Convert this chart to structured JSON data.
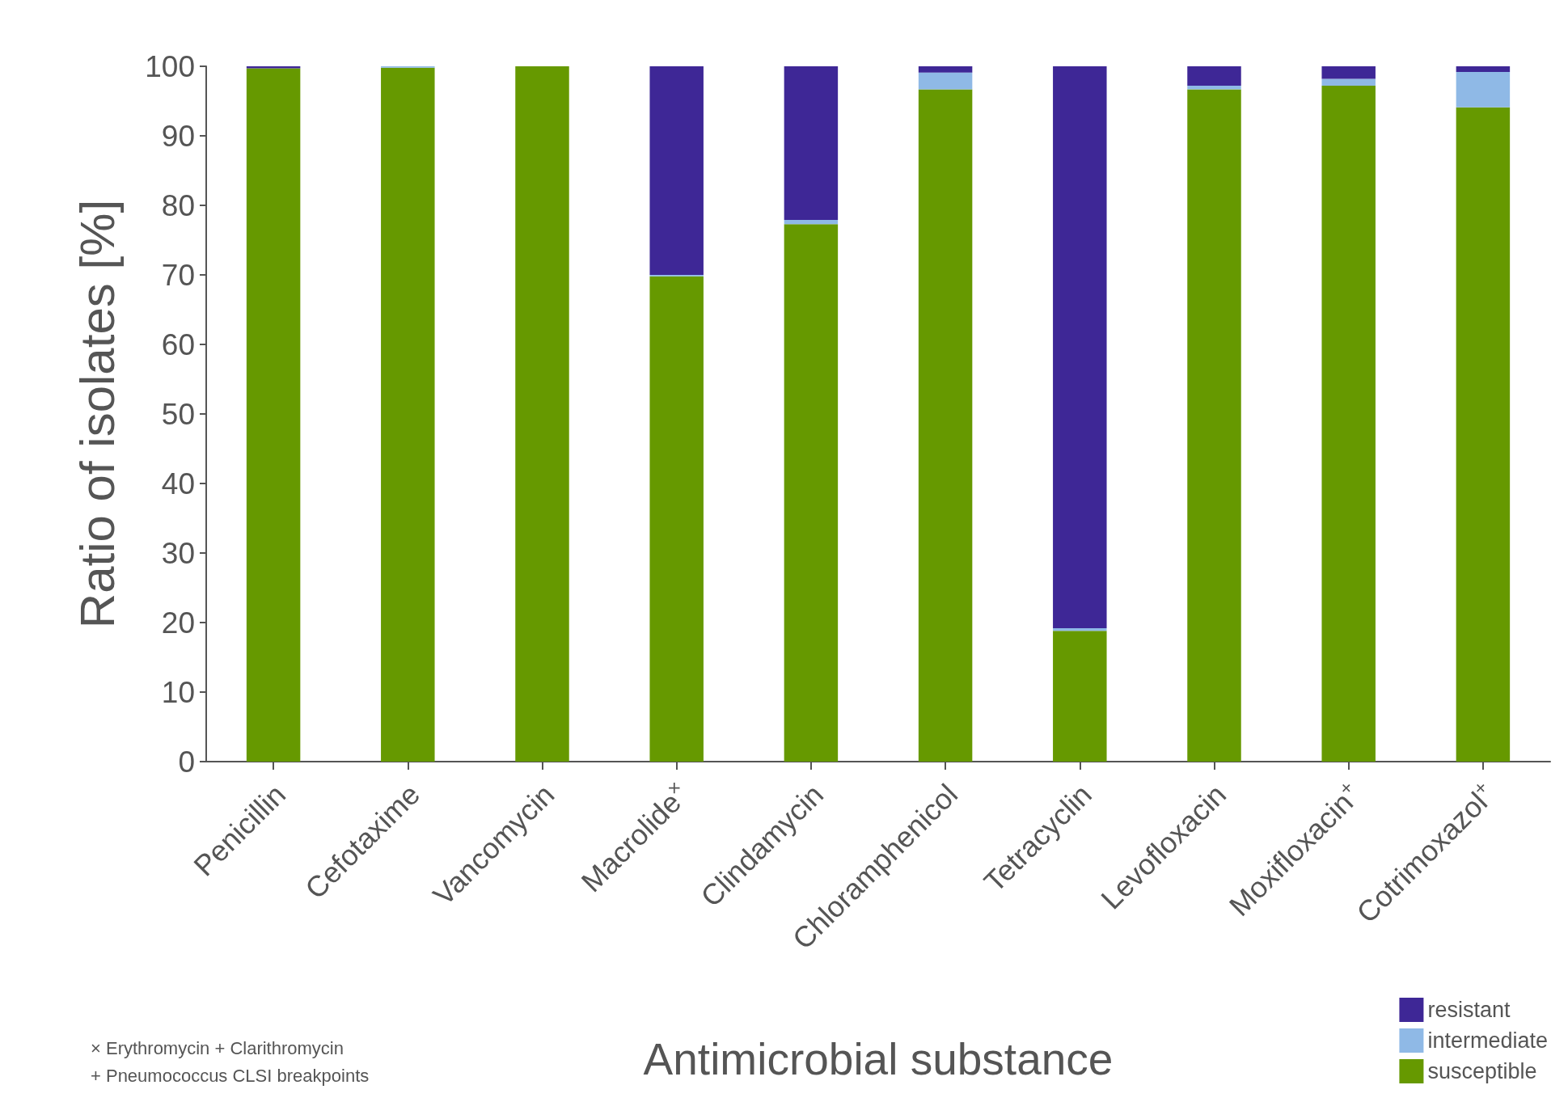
{
  "chart_data": {
    "type": "bar",
    "stacked": true,
    "xlabel": "Antimicrobial substance",
    "ylabel": "Ratio of isolates [%]",
    "categories": [
      "Penicillin",
      "Cefotaxime",
      "Vancomycin",
      "Macrolide$^{×}$",
      "Clindamycin",
      "Chloramphenicol",
      "Tetracyclin",
      "Levofloxacin",
      "Moxifloxacin$^{+}$",
      "Cotrimoxazol$^{+}$"
    ],
    "series": [
      {
        "name": "susceptible",
        "color": "#669900",
        "values": [
          99.7,
          99.8,
          100,
          69.8,
          77.3,
          96.7,
          18.8,
          96.7,
          97.2,
          94.1
        ]
      },
      {
        "name": "intermediate",
        "color": "#8fb9e6",
        "values": [
          0,
          0.2,
          0,
          0.2,
          0.6,
          2.4,
          0.4,
          0.5,
          1.0,
          5.1
        ]
      },
      {
        "name": "resistant",
        "color": "#3e2796",
        "values": [
          0.3,
          0,
          0,
          30,
          22.1,
          0.9,
          80.8,
          2.8,
          1.8,
          0.8
        ]
      }
    ],
    "ylim": [
      0,
      100
    ],
    "yticks": [
      0,
      10,
      20,
      30,
      40,
      50,
      60,
      70,
      80,
      90,
      100
    ],
    "grid": false,
    "legend": "bottom right",
    "annotations": [
      "× Erythromycin + Clarithromycin",
      "+ Pneumococcus CLSI breakpoints"
    ]
  }
}
